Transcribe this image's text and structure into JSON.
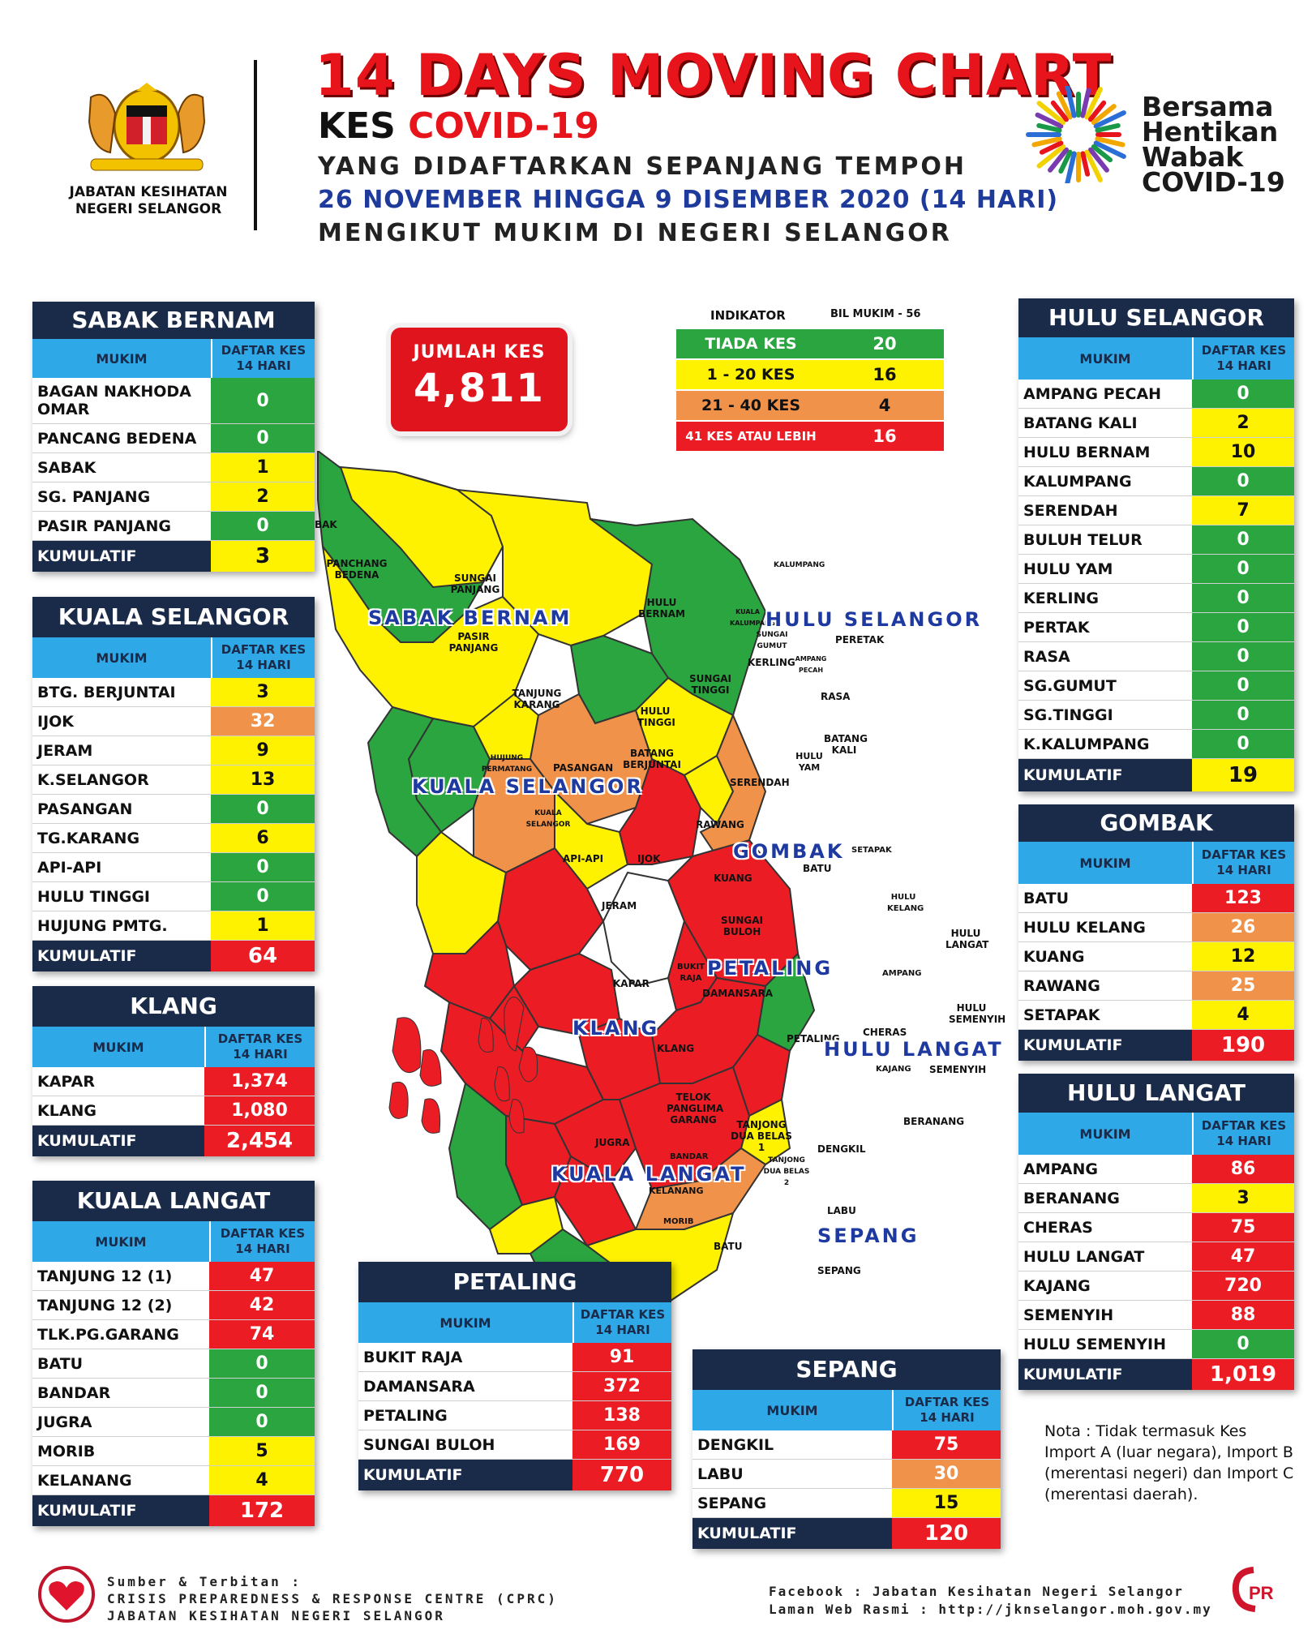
{
  "header": {
    "title": "14 DAYS MOVING CHART",
    "kes": "KES",
    "covid": "COVID-19",
    "line2": "YANG DIDAFTARKAN SEPANJANG TEMPOH",
    "line3": "26 NOVEMBER HINGGA 9 DISEMBER 2020 (14 HARI)",
    "line4": "MENGIKUT MUKIM DI NEGERI SELANGOR",
    "agency_line1": "JABATAN KESIHATAN",
    "agency_line2": "NEGERI SELANGOR",
    "campaign": [
      "Bersama",
      "Hentikan",
      "Wabak",
      "COVID-19"
    ]
  },
  "total": {
    "label": "JUMLAH KES",
    "value": "4,811"
  },
  "indicator": {
    "head_left": "INDIKATOR",
    "head_right": "BIL MUKIM - 56",
    "rows": [
      {
        "label": "TIADA KES",
        "count": "20",
        "color": "#2ba540"
      },
      {
        "label": "1 - 20 KES",
        "count": "16",
        "color": "#fff200"
      },
      {
        "label": "21 - 40 KES",
        "count": "4",
        "color": "#f0924a"
      },
      {
        "label": "41 KES ATAU LEBIH",
        "count": "16",
        "color": "#ec1c24"
      }
    ]
  },
  "colors": {
    "none": "#2ba540",
    "low": "#fff200",
    "mid": "#f0924a",
    "high": "#ec1c24",
    "navy": "#1a2b4a",
    "blue": "#2fa8e8"
  },
  "col_mukim": "MUKIM",
  "col_daftar": "DAFTAR KES",
  "col_hari": "14 HARI",
  "kumulatif_label": "KUMULATIF",
  "districts": {
    "sabak_bernam": {
      "name": "SABAK BERNAM",
      "rows": [
        {
          "mukim": "BAGAN NAKHODA OMAR",
          "kes": "0",
          "c": "g"
        },
        {
          "mukim": "PANCANG BEDENA",
          "kes": "0",
          "c": "g"
        },
        {
          "mukim": "SABAK",
          "kes": "1",
          "c": "y"
        },
        {
          "mukim": "SG. PANJANG",
          "kes": "2",
          "c": "y"
        },
        {
          "mukim": "PASIR PANJANG",
          "kes": "0",
          "c": "g"
        }
      ],
      "kumulatif": "3",
      "kc": "y"
    },
    "kuala_selangor": {
      "name": "KUALA SELANGOR",
      "rows": [
        {
          "mukim": "BTG. BERJUNTAI",
          "kes": "3",
          "c": "y"
        },
        {
          "mukim": "IJOK",
          "kes": "32",
          "c": "o"
        },
        {
          "mukim": "JERAM",
          "kes": "9",
          "c": "y"
        },
        {
          "mukim": "K.SELANGOR",
          "kes": "13",
          "c": "y"
        },
        {
          "mukim": "PASANGAN",
          "kes": "0",
          "c": "g"
        },
        {
          "mukim": "TG.KARANG",
          "kes": "6",
          "c": "y"
        },
        {
          "mukim": "API-API",
          "kes": "0",
          "c": "g"
        },
        {
          "mukim": "HULU TINGGI",
          "kes": "0",
          "c": "g"
        },
        {
          "mukim": "HUJUNG PMTG.",
          "kes": "1",
          "c": "y"
        }
      ],
      "kumulatif": "64",
      "kc": "r"
    },
    "klang": {
      "name": "KLANG",
      "rows": [
        {
          "mukim": "KAPAR",
          "kes": "1,374",
          "c": "r"
        },
        {
          "mukim": "KLANG",
          "kes": "1,080",
          "c": "r"
        }
      ],
      "kumulatif": "2,454",
      "kc": "r"
    },
    "kuala_langat": {
      "name": "KUALA LANGAT",
      "rows": [
        {
          "mukim": "TANJUNG 12 (1)",
          "kes": "47",
          "c": "r"
        },
        {
          "mukim": "TANJUNG 12 (2)",
          "kes": "42",
          "c": "r"
        },
        {
          "mukim": "TLK.PG.GARANG",
          "kes": "74",
          "c": "r"
        },
        {
          "mukim": "BATU",
          "kes": "0",
          "c": "g"
        },
        {
          "mukim": "BANDAR",
          "kes": "0",
          "c": "g"
        },
        {
          "mukim": "JUGRA",
          "kes": "0",
          "c": "g"
        },
        {
          "mukim": "MORIB",
          "kes": "5",
          "c": "y"
        },
        {
          "mukim": "KELANANG",
          "kes": "4",
          "c": "y"
        }
      ],
      "kumulatif": "172",
      "kc": "r"
    },
    "petaling": {
      "name": "PETALING",
      "rows": [
        {
          "mukim": "BUKIT RAJA",
          "kes": "91",
          "c": "r"
        },
        {
          "mukim": "DAMANSARA",
          "kes": "372",
          "c": "r"
        },
        {
          "mukim": "PETALING",
          "kes": "138",
          "c": "r"
        },
        {
          "mukim": "SUNGAI BULOH",
          "kes": "169",
          "c": "r"
        }
      ],
      "kumulatif": "770",
      "kc": "r"
    },
    "sepang": {
      "name": "SEPANG",
      "rows": [
        {
          "mukim": "DENGKIL",
          "kes": "75",
          "c": "r"
        },
        {
          "mukim": "LABU",
          "kes": "30",
          "c": "o"
        },
        {
          "mukim": "SEPANG",
          "kes": "15",
          "c": "y"
        }
      ],
      "kumulatif": "120",
      "kc": "r"
    },
    "hulu_selangor": {
      "name": "HULU SELANGOR",
      "rows": [
        {
          "mukim": "AMPANG PECAH",
          "kes": "0",
          "c": "g"
        },
        {
          "mukim": "BATANG KALI",
          "kes": "2",
          "c": "y"
        },
        {
          "mukim": "HULU BERNAM",
          "kes": "10",
          "c": "y"
        },
        {
          "mukim": "KALUMPANG",
          "kes": "0",
          "c": "g"
        },
        {
          "mukim": "SERENDAH",
          "kes": "7",
          "c": "y"
        },
        {
          "mukim": "BULUH TELUR",
          "kes": "0",
          "c": "g"
        },
        {
          "mukim": "HULU YAM",
          "kes": "0",
          "c": "g"
        },
        {
          "mukim": "KERLING",
          "kes": "0",
          "c": "g"
        },
        {
          "mukim": "PERTAK",
          "kes": "0",
          "c": "g"
        },
        {
          "mukim": "RASA",
          "kes": "0",
          "c": "g"
        },
        {
          "mukim": "SG.GUMUT",
          "kes": "0",
          "c": "g"
        },
        {
          "mukim": "SG.TINGGI",
          "kes": "0",
          "c": "g"
        },
        {
          "mukim": "K.KALUMPANG",
          "kes": "0",
          "c": "g"
        }
      ],
      "kumulatif": "19",
      "kc": "y"
    },
    "gombak": {
      "name": "GOMBAK",
      "rows": [
        {
          "mukim": "BATU",
          "kes": "123",
          "c": "r"
        },
        {
          "mukim": "HULU KELANG",
          "kes": "26",
          "c": "o"
        },
        {
          "mukim": "KUANG",
          "kes": "12",
          "c": "y"
        },
        {
          "mukim": "RAWANG",
          "kes": "25",
          "c": "o"
        },
        {
          "mukim": "SETAPAK",
          "kes": "4",
          "c": "y"
        }
      ],
      "kumulatif": "190",
      "kc": "r"
    },
    "hulu_langat": {
      "name": "HULU LANGAT",
      "rows": [
        {
          "mukim": "AMPANG",
          "kes": "86",
          "c": "r"
        },
        {
          "mukim": "BERANANG",
          "kes": "3",
          "c": "y"
        },
        {
          "mukim": "CHERAS",
          "kes": "75",
          "c": "r"
        },
        {
          "mukim": "HULU LANGAT",
          "kes": "47",
          "c": "r"
        },
        {
          "mukim": "KAJANG",
          "kes": "720",
          "c": "r"
        },
        {
          "mukim": "SEMENYIH",
          "kes": "88",
          "c": "r"
        },
        {
          "mukim": "HULU SEMENYIH",
          "kes": "0",
          "c": "g"
        }
      ],
      "kumulatif": "1,019",
      "kc": "r"
    }
  },
  "map_districts": [
    "SABAK BERNAM",
    "HULU SELANGOR",
    "KUALA SELANGOR",
    "GOMBAK",
    "PETALING",
    "KLANG",
    "HULU LANGAT",
    "KUALA LANGAT",
    "SEPANG"
  ],
  "map_mukims": [
    "BAK",
    "PANCHANG BEDENA",
    "SUNGAI PANJANG",
    "PASIR PANJANG",
    "HULU BERNAM",
    "KALUMPANG",
    "KUALA KALUMPANG",
    "SUNGAI GUMUT",
    "PERETAK",
    "KERLING",
    "AMPANG PECAH",
    "RASA",
    "SUNGAI TINGGI",
    "TANJUNG KARANG",
    "HULU TINGGI",
    "BATANG KALI",
    "HUJUNG PERMATANG",
    "PASANGAN",
    "BATANG BERJUNTAI",
    "HULU YAM",
    "SERENDAH",
    "KUALA SELANGOR",
    "RAWANG",
    "API-API",
    "IJOK",
    "KUANG",
    "BATU",
    "SETAPAK",
    "JERAM",
    "HULU KELANG",
    "SUNGAI BULOH",
    "HULU LANGAT",
    "KAPAR",
    "BUKIT RAJA",
    "DAMANSARA",
    "AMPANG",
    "HULU SEMENYIH",
    "KLANG",
    "PETALING",
    "CHERAS",
    "KAJANG",
    "SEMENYIH",
    "TELOK PANGLIMA GARANG",
    "TANJONG DUA BELAS 1",
    "BERANANG",
    "JUGRA",
    "BANDAR",
    "TANJONG DUA BELAS 2",
    "DENGKIL",
    "KELANANG",
    "LABU",
    "MORIB",
    "BATU",
    "SEPANG"
  ],
  "nota": "Nota : Tidak termasuk Kes Import A (luar negara), Import B (merentasi negeri) dan Import C (merentasi daerah).",
  "footer": {
    "left": [
      "Sumber & Terbitan :",
      "CRISIS PREPAREDNESS & RESPONSE CENTRE (CPRC)",
      "JABATAN KESIHATAN NEGERI SELANGOR"
    ],
    "right": [
      "Facebook : Jabatan Kesihatan Negeri Selangor",
      "Laman Web Rasmi : http://jknselangor.moh.gov.my"
    ],
    "cprc_logo": "CPRC"
  }
}
